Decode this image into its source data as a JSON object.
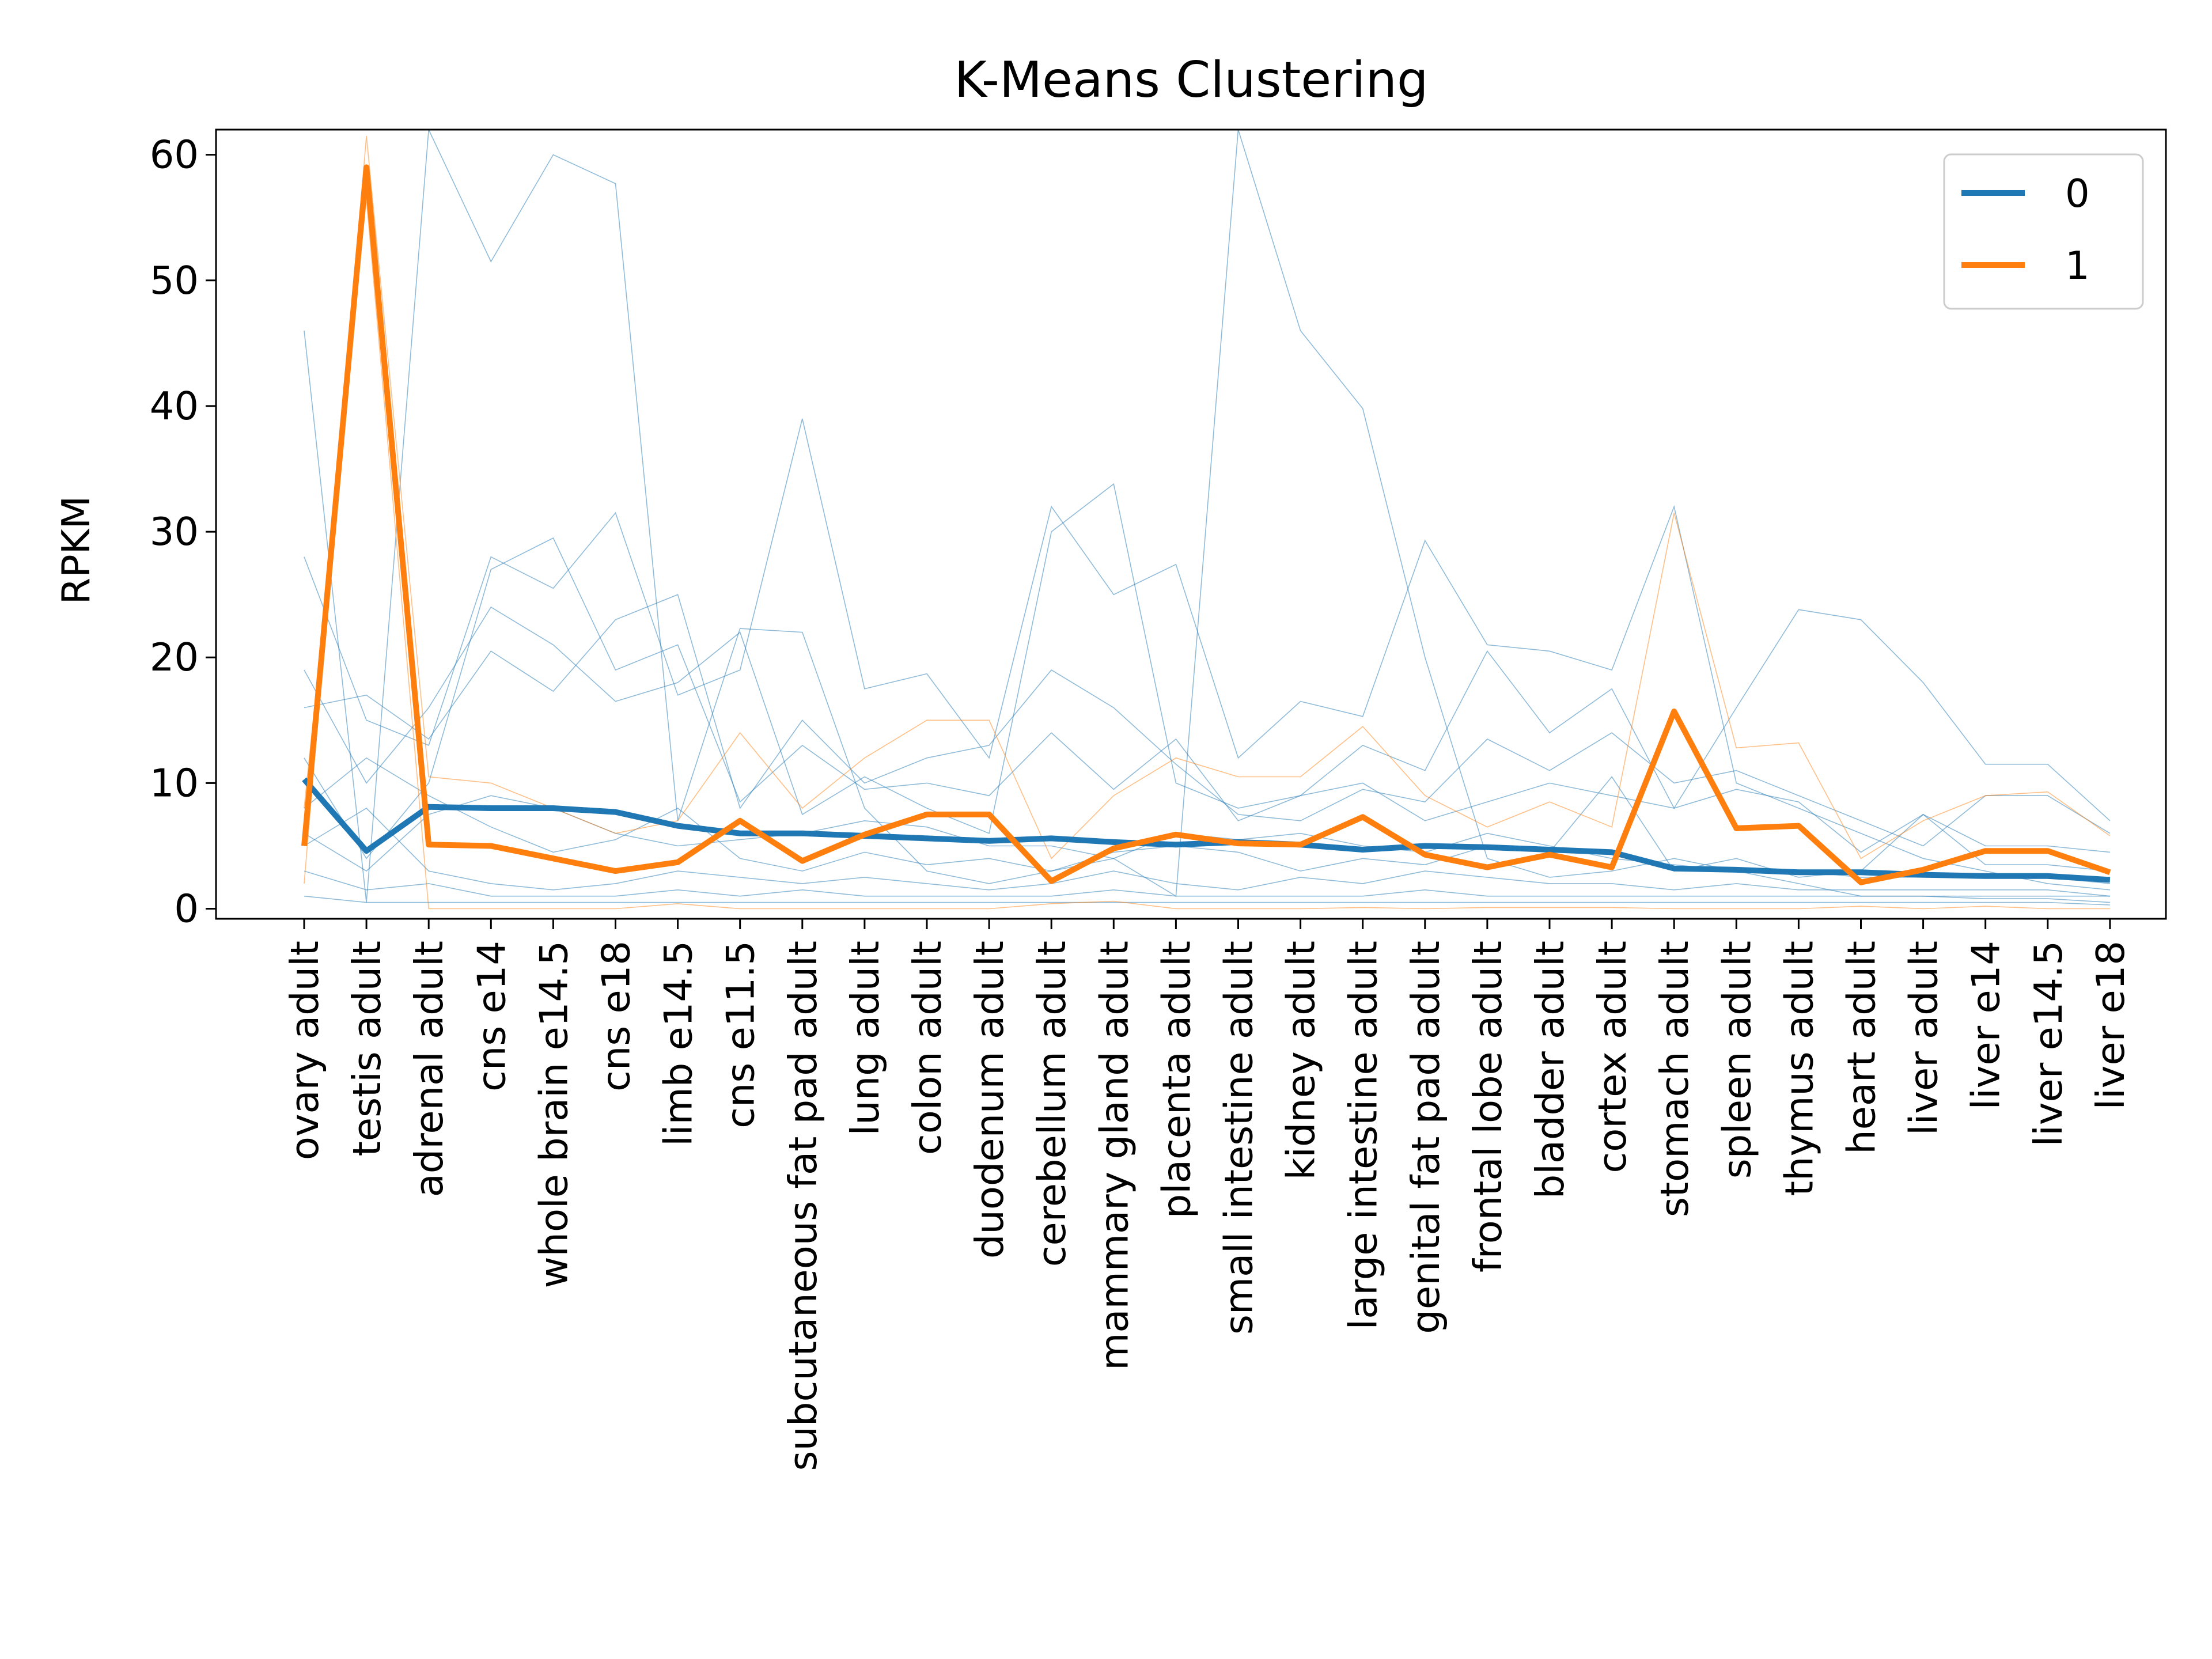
{
  "chart_data": {
    "type": "line",
    "title": "K-Means Clustering",
    "xlabel": "",
    "ylabel": "RPKM",
    "ylim": [
      -0.8,
      62
    ],
    "yticks": [
      0,
      10,
      20,
      30,
      40,
      50,
      60
    ],
    "grid": false,
    "legend_position": "top-right",
    "categories": [
      "ovary adult",
      "testis adult",
      "adrenal adult",
      "cns e14",
      "whole brain e14.5",
      "cns e18",
      "limb e14.5",
      "cns e11.5",
      "subcutaneous fat pad adult",
      "lung adult",
      "colon adult",
      "duodenum adult",
      "cerebellum adult",
      "mammary gland adult",
      "placenta adult",
      "small intestine adult",
      "kidney adult",
      "large intestine adult",
      "genital fat pad adult",
      "frontal lobe adult",
      "bladder adult",
      "cortex adult",
      "stomach adult",
      "spleen adult",
      "thymus adult",
      "heart adult",
      "liver adult",
      "liver e14",
      "liver e14.5",
      "liver e18"
    ],
    "series": [
      {
        "name": "0",
        "color": "#1f77b4",
        "values": [
          10.3,
          4.6,
          8.1,
          8.0,
          8.0,
          7.7,
          6.6,
          6.0,
          6.0,
          5.8,
          5.6,
          5.4,
          5.6,
          5.3,
          5.1,
          5.3,
          5.1,
          4.7,
          5.0,
          4.9,
          4.7,
          4.5,
          3.2,
          3.1,
          2.9,
          2.9,
          2.7,
          2.6,
          2.6,
          2.3
        ]
      },
      {
        "name": "1",
        "color": "#ff7f0e",
        "values": [
          5.0,
          59.0,
          5.1,
          5.0,
          4.0,
          3.0,
          3.7,
          7.0,
          3.8,
          5.9,
          7.5,
          7.5,
          2.2,
          4.8,
          5.9,
          5.2,
          5.1,
          7.3,
          4.3,
          3.3,
          4.3,
          3.3,
          15.7,
          6.4,
          6.6,
          2.1,
          3.1,
          4.6,
          4.6,
          2.9
        ]
      }
    ],
    "members": [
      {
        "cluster": 0,
        "values": [
          46.0,
          0.5,
          62.0,
          51.5,
          60.0,
          57.7,
          7.0,
          22.3,
          22.0,
          8.0,
          3.0,
          2.0,
          3.0,
          4.0,
          1.0,
          62.0,
          46.0,
          39.8,
          20.0,
          4.0,
          2.5,
          3.0,
          4.0,
          3.0,
          2.0,
          1.0,
          1.0,
          1.0,
          1.0,
          1.0
        ]
      },
      {
        "cluster": 0,
        "values": [
          28.0,
          15.0,
          13.0,
          28.0,
          25.5,
          31.5,
          17.0,
          19.0,
          39.0,
          17.5,
          18.7,
          12.0,
          32.0,
          25.0,
          27.4,
          12.0,
          16.5,
          15.3,
          29.3,
          21.0,
          20.5,
          19.0,
          32.0,
          10.0,
          8.0,
          6.0,
          4.0,
          3.0,
          2.0,
          1.5
        ]
      },
      {
        "cluster": 0,
        "values": [
          19.0,
          10.0,
          16.0,
          24.0,
          21.0,
          16.5,
          18.0,
          22.0,
          7.5,
          10.5,
          8.0,
          6.0,
          30.0,
          33.8,
          10.0,
          8.0,
          9.0,
          13.0,
          11.0,
          20.5,
          14.0,
          17.5,
          8.0,
          16.0,
          23.8,
          23.0,
          18.0,
          11.5,
          11.5,
          7.0
        ]
      },
      {
        "cluster": 0,
        "values": [
          16.0,
          17.0,
          13.5,
          20.5,
          17.3,
          23.0,
          25.0,
          8.0,
          15.0,
          10.0,
          12.0,
          13.0,
          19.0,
          16.0,
          11.5,
          7.5,
          7.0,
          9.5,
          8.5,
          13.5,
          11.0,
          14.0,
          10.0,
          11.0,
          9.0,
          7.0,
          5.0,
          9.0,
          9.0,
          6.0
        ]
      },
      {
        "cluster": 0,
        "values": [
          12.0,
          4.0,
          10.0,
          27.0,
          29.5,
          19.0,
          21.0,
          8.5,
          13.0,
          9.5,
          10.0,
          9.0,
          14.0,
          9.5,
          13.5,
          7.0,
          9.0,
          10.0,
          7.0,
          8.5,
          10.0,
          9.0,
          8.0,
          9.5,
          8.5,
          4.5,
          7.5,
          5.0,
          5.0,
          4.5
        ]
      },
      {
        "cluster": 0,
        "values": [
          8.0,
          12.0,
          9.0,
          6.5,
          4.5,
          5.5,
          8.0,
          4.0,
          3.0,
          4.5,
          3.5,
          4.0,
          3.0,
          4.5,
          5.0,
          4.5,
          3.0,
          4.0,
          3.5,
          5.0,
          4.5,
          10.5,
          3.0,
          4.0,
          2.5,
          3.0,
          7.5,
          3.5,
          3.5,
          3.0
        ]
      },
      {
        "cluster": 0,
        "values": [
          6.0,
          3.0,
          7.5,
          9.0,
          8.0,
          6.0,
          5.0,
          5.5,
          6.0,
          7.0,
          6.5,
          5.0,
          5.0,
          4.0,
          6.0,
          5.5,
          6.0,
          5.0,
          4.5,
          6.0,
          5.0,
          4.0,
          3.5,
          3.0,
          3.0,
          2.5,
          2.5,
          2.5,
          2.5,
          2.0
        ]
      },
      {
        "cluster": 0,
        "values": [
          5.0,
          8.0,
          3.0,
          2.0,
          1.5,
          2.0,
          3.0,
          2.5,
          2.0,
          2.5,
          2.0,
          1.5,
          2.0,
          3.0,
          2.0,
          1.5,
          2.5,
          2.0,
          3.0,
          2.5,
          2.0,
          2.0,
          1.5,
          2.0,
          1.5,
          1.5,
          1.5,
          1.5,
          1.5,
          1.0
        ]
      },
      {
        "cluster": 0,
        "values": [
          3.0,
          1.5,
          2.0,
          1.0,
          1.0,
          1.0,
          1.5,
          1.0,
          1.5,
          1.0,
          1.0,
          1.0,
          1.0,
          1.5,
          1.0,
          1.0,
          1.0,
          1.0,
          1.5,
          1.0,
          1.0,
          1.0,
          1.0,
          1.0,
          1.0,
          1.0,
          1.0,
          0.8,
          0.8,
          0.5
        ]
      },
      {
        "cluster": 0,
        "values": [
          1.0,
          0.5,
          0.5,
          0.5,
          0.5,
          0.5,
          0.5,
          0.5,
          0.5,
          0.5,
          0.5,
          0.5,
          0.5,
          0.5,
          0.5,
          0.5,
          0.5,
          0.5,
          0.5,
          0.5,
          0.5,
          0.5,
          0.5,
          0.5,
          0.5,
          0.5,
          0.5,
          0.5,
          0.5,
          0.3
        ]
      },
      {
        "cluster": 1,
        "values": [
          2.0,
          61.5,
          10.5,
          10.0,
          8.0,
          6.0,
          7.0,
          14.0,
          8.0,
          12.0,
          15.0,
          15.0,
          4.0,
          9.0,
          12.0,
          10.5,
          10.5,
          14.5,
          9.0,
          6.5,
          8.5,
          6.5,
          31.5,
          12.8,
          13.2,
          4.0,
          7.0,
          9.0,
          9.3,
          5.8
        ]
      },
      {
        "cluster": 1,
        "values": [
          8.0,
          56.5,
          0.0,
          0.0,
          0.0,
          0.0,
          0.4,
          0.0,
          0.0,
          0.0,
          0.0,
          0.0,
          0.4,
          0.6,
          0.0,
          0.0,
          0.0,
          0.1,
          0.0,
          0.1,
          0.1,
          0.1,
          0.0,
          0.0,
          0.0,
          0.2,
          0.0,
          0.2,
          0.0,
          0.0
        ]
      }
    ]
  }
}
